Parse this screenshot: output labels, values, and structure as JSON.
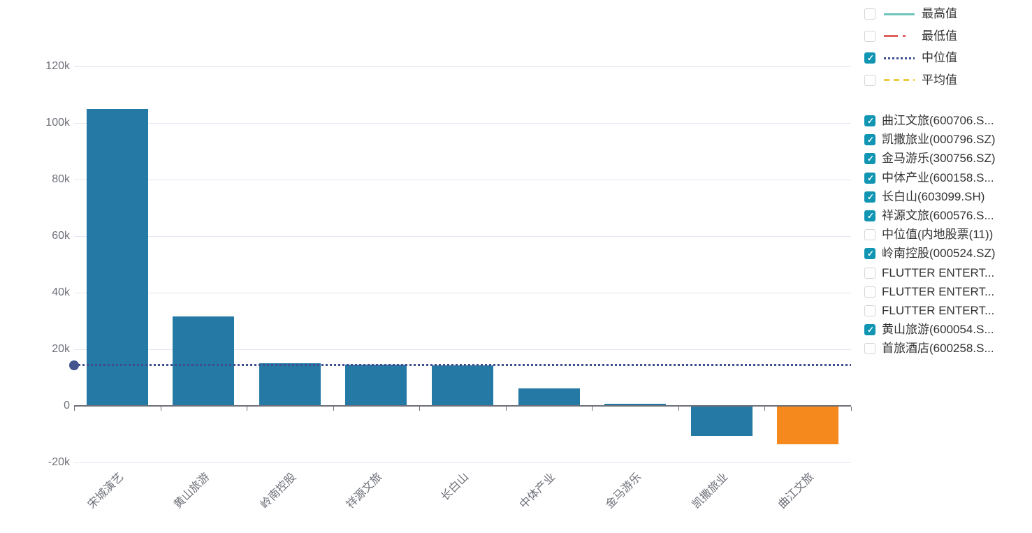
{
  "colors": {
    "bar_blue": "#2579a5",
    "bar_orange": "#f6891e",
    "checkbox_checked": "#1095b3",
    "grid_line": "#e2e7f3",
    "axis_line": "#6E7079",
    "axis_text": "#6E7079",
    "legend_text": "#333333",
    "median_line": "#3d4d8e",
    "median_dot": "#44548f",
    "legend_max": "#6fc3bd",
    "legend_min": "#e0615e",
    "legend_median": "#3d4d8e",
    "legend_mean": "#eccb41"
  },
  "chart_data": {
    "type": "bar",
    "title": "",
    "xlabel": "",
    "ylabel": "",
    "categories": [
      "宋城演艺",
      "黄山旅游",
      "岭南控股",
      "祥源文旅",
      "长白山",
      "中体产业",
      "金马游乐",
      "凯撒旅业",
      "曲江文旅"
    ],
    "values": [
      105000,
      31500,
      15000,
      14600,
      14300,
      6200,
      700,
      -10600,
      -13500
    ],
    "bar_colors": [
      "#2579a5",
      "#2579a5",
      "#2579a5",
      "#2579a5",
      "#2579a5",
      "#2579a5",
      "#2579a5",
      "#2579a5",
      "#f6891e"
    ],
    "ylim": [
      -20000,
      120000
    ],
    "y_tick_step": 20000,
    "y_tick_labels": [
      "120k",
      "100k",
      "80k",
      "60k",
      "40k",
      "20k",
      "0",
      "-20k"
    ],
    "grid": true,
    "legend_position": "right",
    "reference_lines": [
      {
        "name": "中位值",
        "value": 14400,
        "style": "dotted",
        "color": "#3d4d8e",
        "visible": true
      }
    ]
  },
  "legend": {
    "stat_lines": [
      {
        "label": "最高值",
        "checked": false,
        "color": "#6fc3bd",
        "style": "solid"
      },
      {
        "label": "最低值",
        "checked": false,
        "color": "#e0615e",
        "style": "dash-dot"
      },
      {
        "label": "中位值",
        "checked": true,
        "color": "#3d4d8e",
        "style": "dotted"
      },
      {
        "label": "平均值",
        "checked": false,
        "color": "#eccb41",
        "style": "dashed"
      }
    ],
    "series_items": [
      {
        "label": "曲江文旅(600706.S...",
        "checked": true
      },
      {
        "label": "凯撒旅业(000796.SZ)",
        "checked": true
      },
      {
        "label": "金马游乐(300756.SZ)",
        "checked": true
      },
      {
        "label": "中体产业(600158.S...",
        "checked": true
      },
      {
        "label": "长白山(603099.SH)",
        "checked": true
      },
      {
        "label": "祥源文旅(600576.S...",
        "checked": true
      },
      {
        "label": "中位值(内地股票(11))",
        "checked": false
      },
      {
        "label": "岭南控股(000524.SZ)",
        "checked": true
      },
      {
        "label": "FLUTTER ENTERT...",
        "checked": false
      },
      {
        "label": "FLUTTER ENTERT...",
        "checked": false
      },
      {
        "label": "FLUTTER ENTERT...",
        "checked": false
      },
      {
        "label": "黄山旅游(600054.S...",
        "checked": true
      },
      {
        "label": "首旅酒店(600258.S...",
        "checked": false
      }
    ]
  }
}
